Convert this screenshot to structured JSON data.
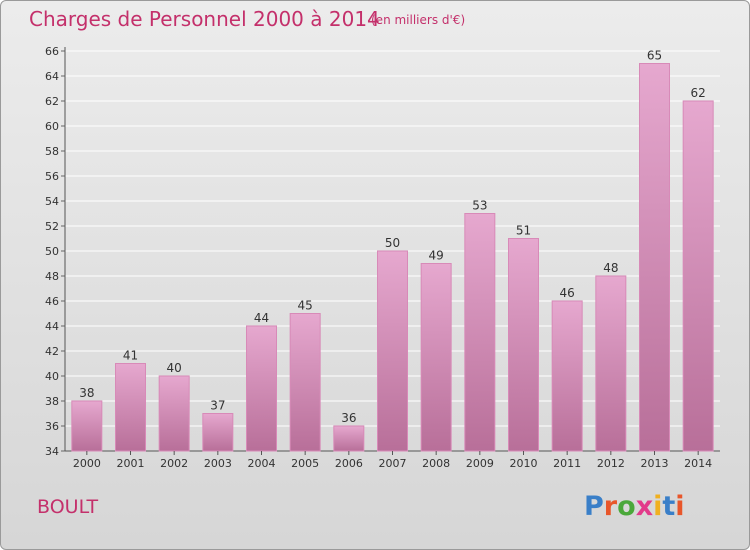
{
  "header": {
    "title": "Charges de Personnel 2000 à 2014",
    "subtitle": "(en milliers d'€)"
  },
  "footer": {
    "commune": "BOULT",
    "brand_letters": [
      "P",
      "r",
      "o",
      "x",
      "i",
      "t",
      "i"
    ],
    "brand_colors": [
      "#3a7fc8",
      "#e8562a",
      "#4aa83a",
      "#e23a8a",
      "#f0b020",
      "#3a7fc8",
      "#e8562a"
    ]
  },
  "colors": {
    "bar_top": "#e6a8cf",
    "bar_bottom": "#b86f99",
    "bar_edge": "#d88ab8",
    "accent": "#c4306b",
    "grid": "#ffffff"
  },
  "chart_data": {
    "type": "bar",
    "categories": [
      "2000",
      "2001",
      "2002",
      "2003",
      "2004",
      "2005",
      "2006",
      "2007",
      "2008",
      "2009",
      "2010",
      "2011",
      "2012",
      "2013",
      "2014"
    ],
    "values": [
      38,
      41,
      40,
      37,
      44,
      45,
      36,
      50,
      49,
      53,
      51,
      46,
      48,
      65,
      62
    ],
    "ylim": [
      34,
      66
    ],
    "yticks": [
      34,
      36,
      38,
      40,
      42,
      44,
      46,
      48,
      50,
      52,
      54,
      56,
      58,
      60,
      62,
      64,
      66
    ],
    "grid": true
  }
}
